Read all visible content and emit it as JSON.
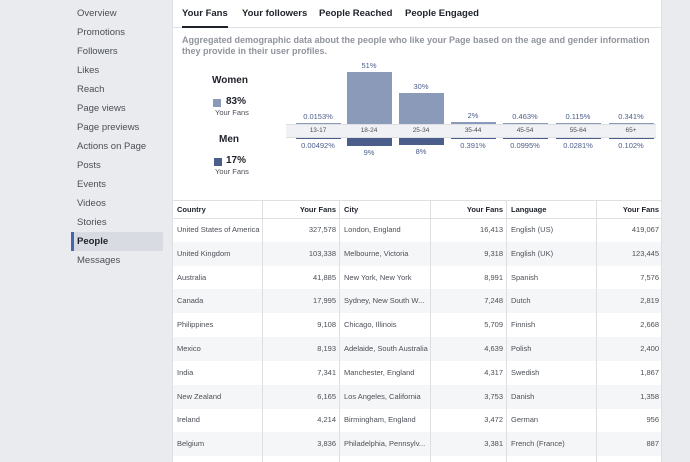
{
  "sidebar": {
    "items": [
      {
        "label": "Overview"
      },
      {
        "label": "Promotions"
      },
      {
        "label": "Followers"
      },
      {
        "label": "Likes"
      },
      {
        "label": "Reach"
      },
      {
        "label": "Page views"
      },
      {
        "label": "Page previews"
      },
      {
        "label": "Actions on Page"
      },
      {
        "label": "Posts"
      },
      {
        "label": "Events"
      },
      {
        "label": "Videos"
      },
      {
        "label": "Stories"
      },
      {
        "label": "People"
      },
      {
        "label": "Messages"
      }
    ],
    "active": "People"
  },
  "tabs": [
    {
      "label": "Your Fans"
    },
    {
      "label": "Your followers"
    },
    {
      "label": "People Reached"
    },
    {
      "label": "People Engaged"
    }
  ],
  "description": "Aggregated demographic data about the people who like your Page based on the age and gender information they provide in their user profiles.",
  "gender": {
    "women": {
      "title": "Women",
      "percent": "83%",
      "sub": "Your Fans",
      "color": "#8c9ab9"
    },
    "men": {
      "title": "Men",
      "percent": "17%",
      "sub": "Your Fans",
      "color": "#4b5d8a"
    }
  },
  "chart_data": {
    "type": "bar",
    "categories": [
      "13-17",
      "18-24",
      "25-34",
      "35-44",
      "45-54",
      "55-64",
      "65+"
    ],
    "series": [
      {
        "name": "Women",
        "values": [
          0.0153,
          51,
          30,
          2,
          0.463,
          0.115,
          0.341
        ],
        "labels": [
          "0.0153%",
          "51%",
          "30%",
          "2%",
          "0.463%",
          "0.115%",
          "0.341%"
        ]
      },
      {
        "name": "Men",
        "values": [
          0.00492,
          9,
          8,
          0.391,
          0.0995,
          0.0281,
          0.102
        ],
        "labels": [
          "0.00492%",
          "9%",
          "8%",
          "0.391%",
          "0.0995%",
          "0.0281%",
          "0.102%"
        ]
      }
    ]
  },
  "tables": {
    "country": {
      "header": "Country",
      "value_header": "Your Fans",
      "rows": [
        [
          "United States of America",
          "327,578"
        ],
        [
          "United Kingdom",
          "103,338"
        ],
        [
          "Australia",
          "41,885"
        ],
        [
          "Canada",
          "17,995"
        ],
        [
          "Philippines",
          "9,108"
        ],
        [
          "Mexico",
          "8,193"
        ],
        [
          "India",
          "7,341"
        ],
        [
          "New Zealand",
          "6,165"
        ],
        [
          "Ireland",
          "4,214"
        ],
        [
          "Belgium",
          "3,836"
        ]
      ]
    },
    "city": {
      "header": "City",
      "value_header": "Your Fans",
      "rows": [
        [
          "London, England",
          "16,413"
        ],
        [
          "Melbourne, Victoria",
          "9,318"
        ],
        [
          "New York, New York",
          "8,991"
        ],
        [
          "Sydney, New South W...",
          "7,248"
        ],
        [
          "Chicago, Illinois",
          "5,709"
        ],
        [
          "Adelaide, South Australia",
          "4,639"
        ],
        [
          "Manchester, England",
          "4,317"
        ],
        [
          "Los Angeles, California",
          "3,753"
        ],
        [
          "Birmingham, England",
          "3,472"
        ],
        [
          "Philadelphia, Pennsylv...",
          "3,381"
        ]
      ]
    },
    "language": {
      "header": "Language",
      "value_header": "Your Fans",
      "rows": [
        [
          "English (US)",
          "419,067"
        ],
        [
          "English (UK)",
          "123,445"
        ],
        [
          "Spanish",
          "7,576"
        ],
        [
          "Dutch",
          "2,819"
        ],
        [
          "Finnish",
          "2,668"
        ],
        [
          "Polish",
          "2,400"
        ],
        [
          "Swedish",
          "1,867"
        ],
        [
          "Danish",
          "1,358"
        ],
        [
          "German",
          "956"
        ],
        [
          "French (France)",
          "887"
        ]
      ]
    }
  }
}
